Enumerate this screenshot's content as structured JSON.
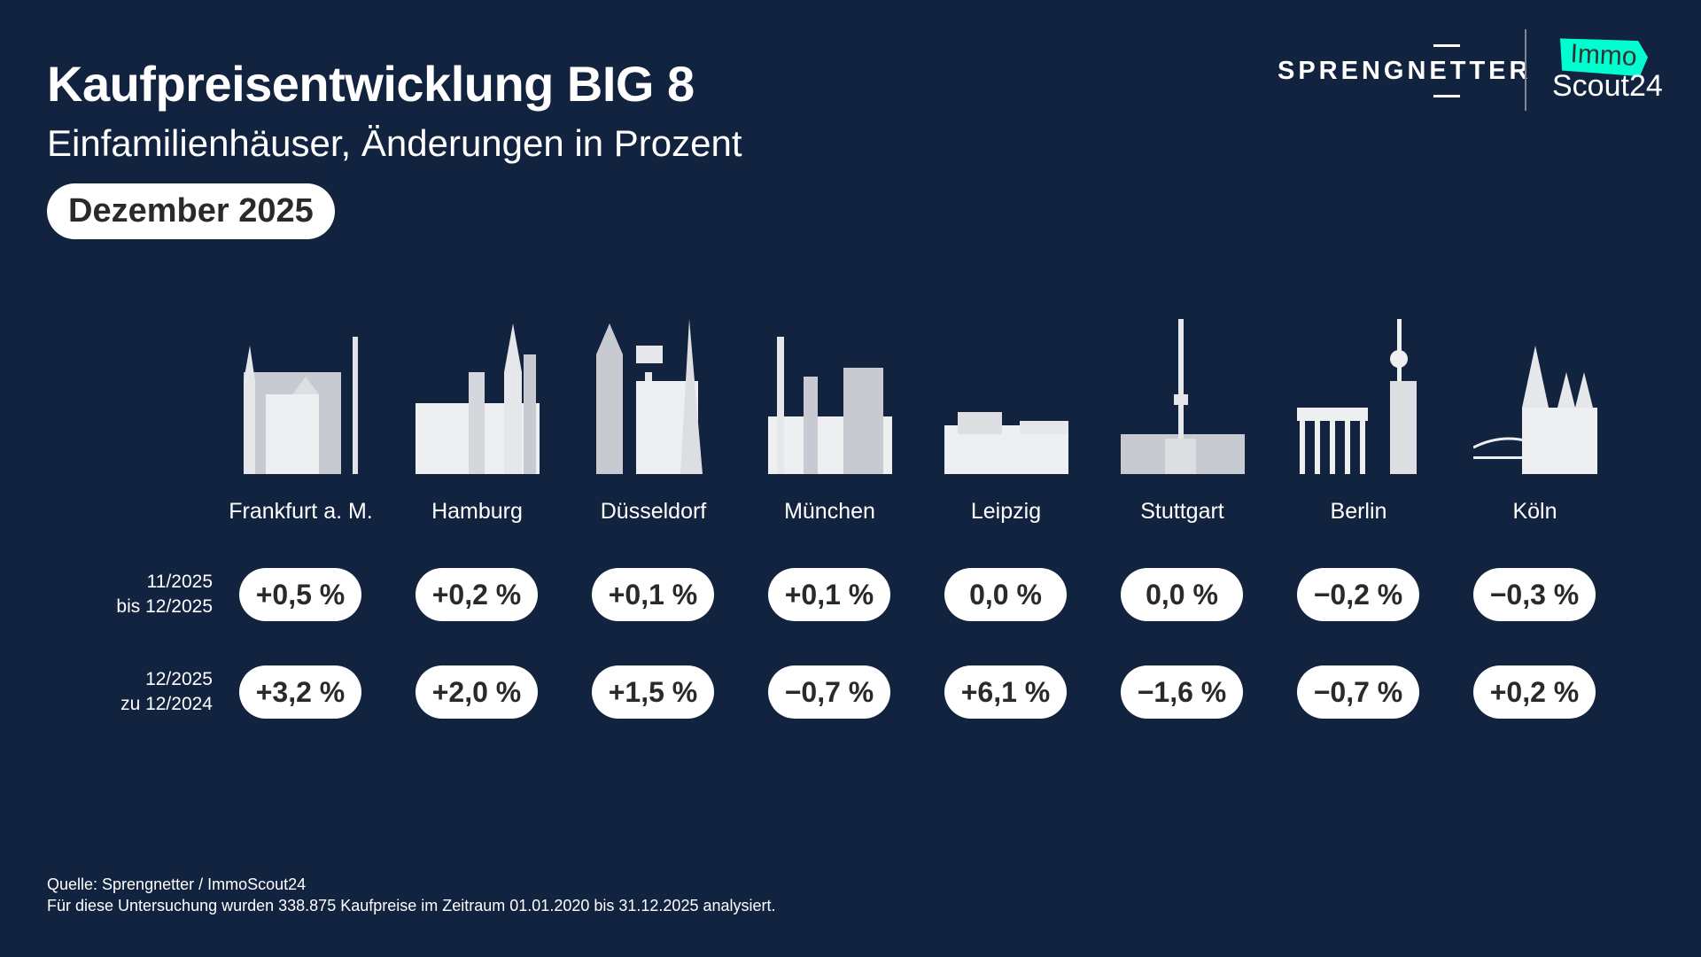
{
  "header": {
    "title": "Kaufpreisentwicklung BIG 8",
    "subtitle": "Einfamilienhäuser, Änderungen in Prozent",
    "period": "Dezember 2025"
  },
  "logos": {
    "sprengnetter": "SPRENGNETTER",
    "immo": "Immo",
    "scout": "Scout24",
    "immo_color": "#00ffd0"
  },
  "row_labels": [
    {
      "line1": "11/2025",
      "line2": "bis 12/2025"
    },
    {
      "line1": "12/2025",
      "line2": "zu 12/2024"
    }
  ],
  "cities": [
    {
      "name": "Frankfurt a. M.",
      "monthly": "+0,5 %",
      "yearly": "+3,2 %"
    },
    {
      "name": "Hamburg",
      "monthly": "+0,2 %",
      "yearly": "+2,0 %"
    },
    {
      "name": "Düsseldorf",
      "monthly": "+0,1 %",
      "yearly": "+1,5 %"
    },
    {
      "name": "München",
      "monthly": "+0,1 %",
      "yearly": "−0,7 %"
    },
    {
      "name": "Leipzig",
      "monthly": "0,0 %",
      "yearly": "+6,1 %"
    },
    {
      "name": "Stuttgart",
      "monthly": "0,0 %",
      "yearly": "−1,6 %"
    },
    {
      "name": "Berlin",
      "monthly": "−0,2 %",
      "yearly": "−0,7 %"
    },
    {
      "name": "Köln",
      "monthly": "−0,3 %",
      "yearly": "+0,2 %"
    }
  ],
  "footer": {
    "source": "Quelle: Sprengnetter / ImmoScout24",
    "note": "Für diese Untersuchung wurden 338.875 Kaufpreise im Zeitraum 01.01.2020 bis 31.12.2025 analysiert."
  }
}
